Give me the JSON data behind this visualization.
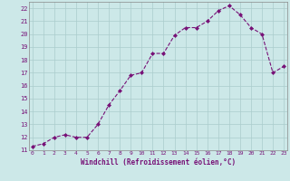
{
  "x": [
    0,
    1,
    2,
    3,
    4,
    5,
    6,
    7,
    8,
    9,
    10,
    11,
    12,
    13,
    14,
    15,
    16,
    17,
    18,
    19,
    20,
    21,
    22,
    23
  ],
  "y": [
    11.3,
    11.5,
    12.0,
    12.2,
    12.0,
    12.0,
    13.0,
    14.5,
    15.6,
    16.8,
    17.0,
    18.5,
    18.5,
    19.9,
    20.5,
    20.5,
    21.0,
    21.8,
    22.2,
    21.5,
    20.5,
    20.0,
    17.0,
    17.5
  ],
  "xlim_min": -0.3,
  "xlim_max": 23.3,
  "ylim_min": 11,
  "ylim_max": 22.5,
  "yticks": [
    11,
    12,
    13,
    14,
    15,
    16,
    17,
    18,
    19,
    20,
    21,
    22
  ],
  "xtick_labels": [
    "0",
    "1",
    "2",
    "3",
    "4",
    "5",
    "6",
    "7",
    "8",
    "9",
    "10",
    "11",
    "12",
    "13",
    "14",
    "15",
    "16",
    "17",
    "18",
    "19",
    "20",
    "21",
    "22",
    "23"
  ],
  "line_color": "#771177",
  "marker": "D",
  "marker_size": 2.0,
  "bg_color": "#cce8e8",
  "grid_color": "#aacccc",
  "xlabel": "Windchill (Refroidissement éolien,°C)",
  "xlabel_color": "#771177",
  "tick_color": "#771177",
  "line_width": 0.8
}
